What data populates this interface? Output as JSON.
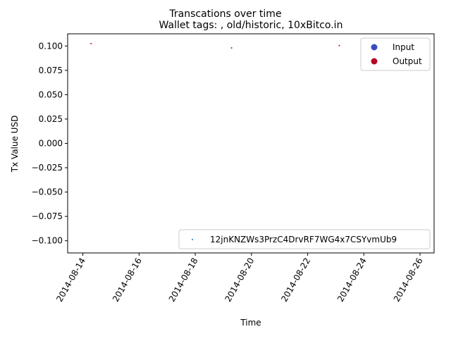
{
  "chart_data": {
    "type": "scatter",
    "suptitle": "Transcations over time",
    "title": "Wallet tags: , old/historic, 10xBitco.in",
    "xlabel": "Time",
    "ylabel": "Tx Value USD",
    "xlim": [
      "2014-08-13T11:00",
      "2014-08-26T12:00"
    ],
    "ylim": [
      -0.1125,
      0.1125
    ],
    "grid": false,
    "x_ticks": [
      "2014-08-14",
      "2014-08-16",
      "2014-08-18",
      "2014-08-20",
      "2014-08-22",
      "2014-08-24",
      "2014-08-26"
    ],
    "y_ticks": [
      {
        "value": 0.1,
        "label": "0.100"
      },
      {
        "value": 0.075,
        "label": "0.075"
      },
      {
        "value": 0.05,
        "label": "0.050"
      },
      {
        "value": 0.025,
        "label": "0.025"
      },
      {
        "value": 0.0,
        "label": "0.000"
      },
      {
        "value": -0.025,
        "label": "−0.025"
      },
      {
        "value": -0.05,
        "label": "−0.050"
      },
      {
        "value": -0.075,
        "label": "−0.075"
      },
      {
        "value": -0.1,
        "label": "−0.100"
      }
    ],
    "series": [
      {
        "name": "Output",
        "color": "#b40426",
        "points": [
          {
            "x": "2014-08-14T07:00",
            "y": 0.1025
          },
          {
            "x": "2014-08-19T07:00",
            "y": 0.098
          },
          {
            "x": "2014-08-23T03:00",
            "y": 0.1005
          }
        ]
      }
    ],
    "legends": [
      {
        "placement": "upper right",
        "entries": [
          {
            "label": "Input",
            "color": "#3b4cc0"
          },
          {
            "label": "Output",
            "color": "#b40426"
          }
        ]
      },
      {
        "placement": "lower right",
        "entries": [
          {
            "label": "12jnKNZWs3PrzC4DrvRF7WG4x7CSYvmUb9",
            "color": "#1f77b4"
          }
        ]
      }
    ]
  }
}
